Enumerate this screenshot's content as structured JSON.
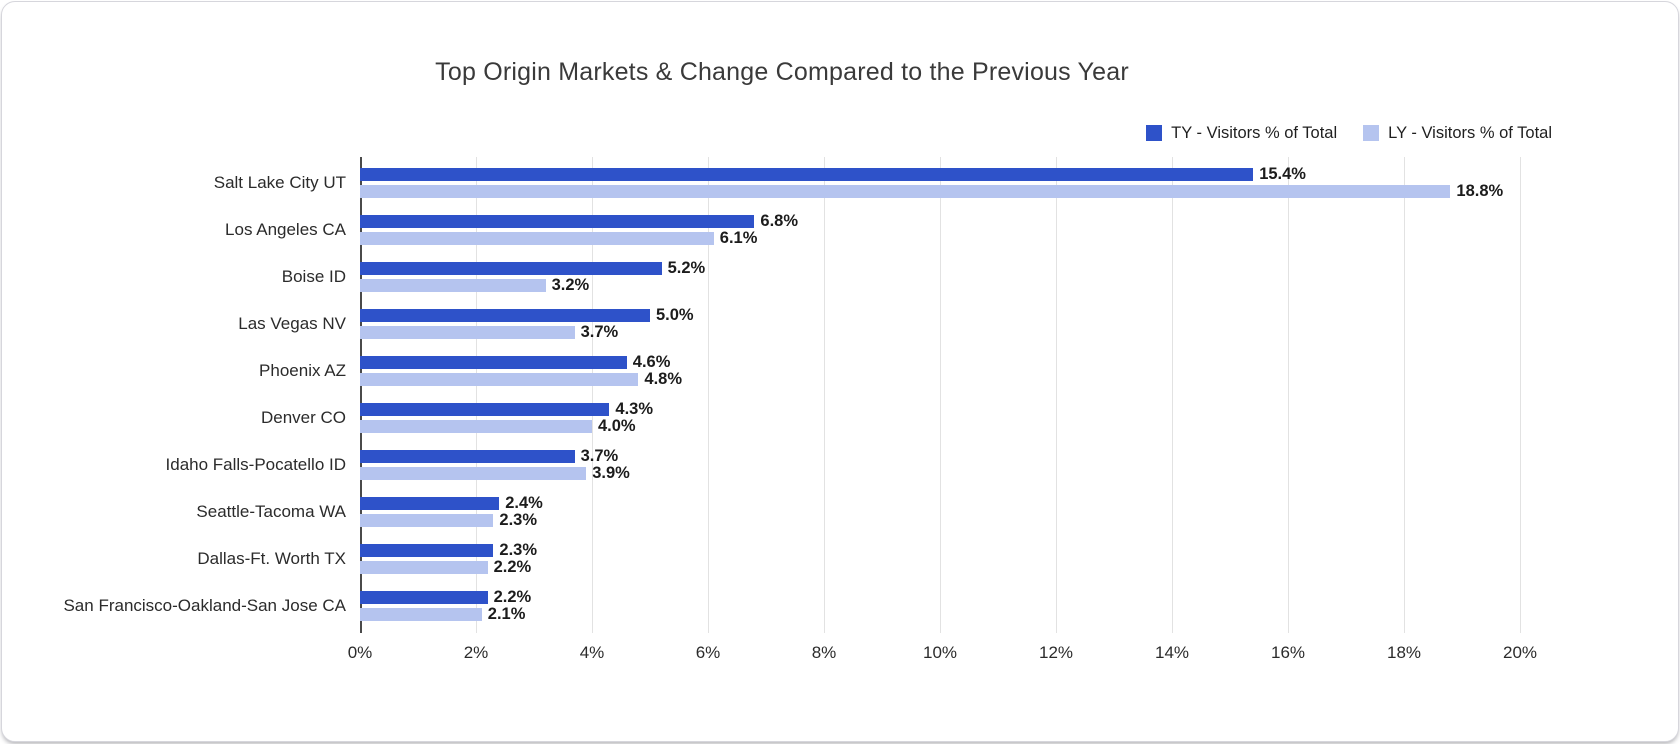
{
  "chart_data": {
    "type": "bar",
    "orientation": "horizontal",
    "title": "Top Origin Markets & Change Compared to the Previous Year",
    "categories": [
      "Salt Lake City UT",
      "Los Angeles CA",
      "Boise ID",
      "Las Vegas NV",
      "Phoenix AZ",
      "Denver CO",
      "Idaho Falls-Pocatello ID",
      "Seattle-Tacoma WA",
      "Dallas-Ft. Worth TX",
      "San Francisco-Oakland-San Jose CA"
    ],
    "series": [
      {
        "name": "TY - Visitors % of Total",
        "color": "#2e52c9",
        "values": [
          15.4,
          6.8,
          5.2,
          5.0,
          4.6,
          4.3,
          3.7,
          2.4,
          2.3,
          2.2
        ],
        "value_labels": [
          "15.4%",
          "6.8%",
          "5.2%",
          "5.0%",
          "4.6%",
          "4.3%",
          "3.7%",
          "2.4%",
          "2.3%",
          "2.2%"
        ]
      },
      {
        "name": "LY - Visitors % of Total",
        "color": "#b5c4ef",
        "values": [
          18.8,
          6.1,
          3.2,
          3.7,
          4.8,
          4.0,
          3.9,
          2.3,
          2.2,
          2.1
        ],
        "value_labels": [
          "18.8%",
          "6.1%",
          "3.2%",
          "3.7%",
          "4.8%",
          "4.0%",
          "3.9%",
          "2.3%",
          "2.2%",
          "2.1%"
        ]
      }
    ],
    "xlim": [
      0,
      20
    ],
    "x_ticks": [
      0,
      2,
      4,
      6,
      8,
      10,
      12,
      14,
      16,
      18,
      20
    ],
    "x_tick_labels": [
      "0%",
      "2%",
      "4%",
      "6%",
      "8%",
      "10%",
      "12%",
      "14%",
      "16%",
      "18%",
      "20%"
    ],
    "grid": true,
    "legend_position": "top-right",
    "axis_line_color": "#4a4a4a",
    "gridline_color": "#e2e2e2"
  }
}
